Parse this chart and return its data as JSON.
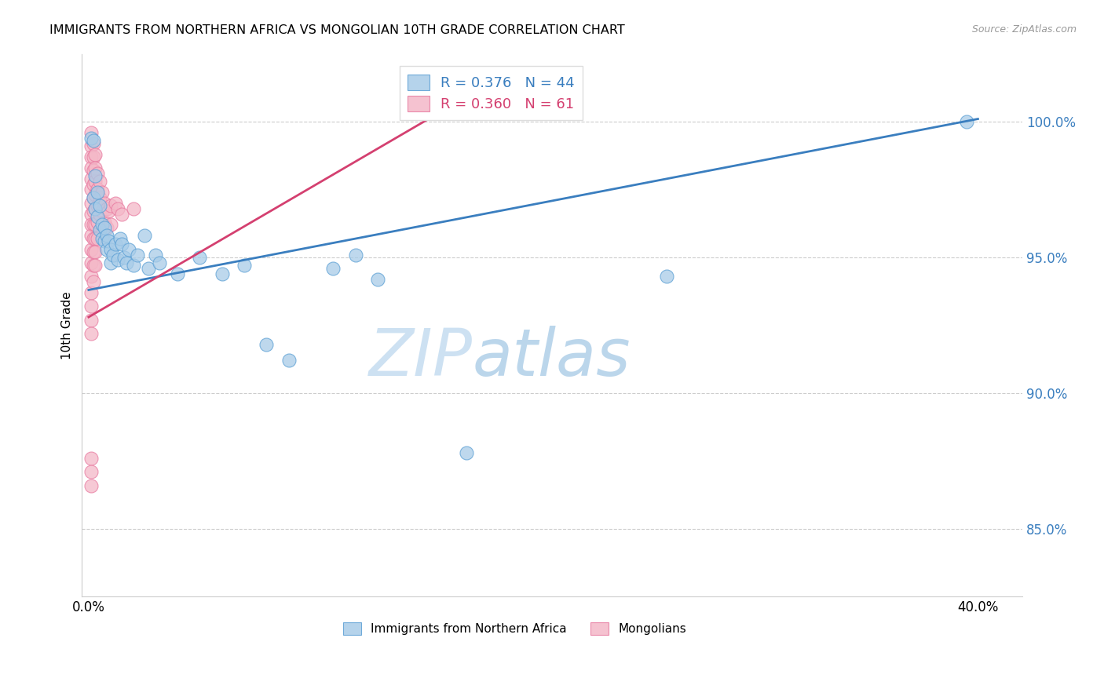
{
  "title": "IMMIGRANTS FROM NORTHERN AFRICA VS MONGOLIAN 10TH GRADE CORRELATION CHART",
  "source": "Source: ZipAtlas.com",
  "ylabel": "10th Grade",
  "y_ticks": [
    0.85,
    0.9,
    0.95,
    1.0
  ],
  "y_tick_labels": [
    "85.0%",
    "90.0%",
    "95.0%",
    "100.0%"
  ],
  "x_ticks": [
    0.0,
    0.05,
    0.1,
    0.15,
    0.2,
    0.25,
    0.3,
    0.35,
    0.4
  ],
  "x_tick_labels": [
    "0.0%",
    "",
    "",
    "",
    "",
    "",
    "",
    "",
    "40.0%"
  ],
  "xlim": [
    -0.003,
    0.42
  ],
  "ylim": [
    0.825,
    1.025
  ],
  "legend_blue_r": "0.376",
  "legend_blue_n": "44",
  "legend_pink_r": "0.360",
  "legend_pink_n": "61",
  "legend_blue_label": "Immigrants from Northern Africa",
  "legend_pink_label": "Mongolians",
  "blue_color": "#a8cce8",
  "pink_color": "#f4b8c8",
  "blue_edge_color": "#5b9fd4",
  "pink_edge_color": "#e87aa0",
  "blue_line_color": "#3a7ebf",
  "pink_line_color": "#d44070",
  "watermark_zip": "ZIP",
  "watermark_atlas": "atlas",
  "blue_points": [
    [
      0.001,
      0.994
    ],
    [
      0.002,
      0.993
    ],
    [
      0.002,
      0.972
    ],
    [
      0.003,
      0.98
    ],
    [
      0.003,
      0.968
    ],
    [
      0.004,
      0.974
    ],
    [
      0.004,
      0.965
    ],
    [
      0.005,
      0.969
    ],
    [
      0.005,
      0.96
    ],
    [
      0.006,
      0.962
    ],
    [
      0.006,
      0.957
    ],
    [
      0.007,
      0.961
    ],
    [
      0.007,
      0.956
    ],
    [
      0.008,
      0.958
    ],
    [
      0.008,
      0.953
    ],
    [
      0.009,
      0.956
    ],
    [
      0.01,
      0.953
    ],
    [
      0.01,
      0.948
    ],
    [
      0.011,
      0.951
    ],
    [
      0.012,
      0.955
    ],
    [
      0.013,
      0.949
    ],
    [
      0.014,
      0.957
    ],
    [
      0.015,
      0.955
    ],
    [
      0.016,
      0.95
    ],
    [
      0.017,
      0.948
    ],
    [
      0.018,
      0.953
    ],
    [
      0.02,
      0.947
    ],
    [
      0.022,
      0.951
    ],
    [
      0.025,
      0.958
    ],
    [
      0.027,
      0.946
    ],
    [
      0.03,
      0.951
    ],
    [
      0.032,
      0.948
    ],
    [
      0.04,
      0.944
    ],
    [
      0.05,
      0.95
    ],
    [
      0.06,
      0.944
    ],
    [
      0.07,
      0.947
    ],
    [
      0.08,
      0.918
    ],
    [
      0.09,
      0.912
    ],
    [
      0.11,
      0.946
    ],
    [
      0.12,
      0.951
    ],
    [
      0.13,
      0.942
    ],
    [
      0.17,
      0.878
    ],
    [
      0.26,
      0.943
    ],
    [
      0.395,
      1.0
    ]
  ],
  "pink_points": [
    [
      0.001,
      0.996
    ],
    [
      0.001,
      0.991
    ],
    [
      0.001,
      0.987
    ],
    [
      0.001,
      0.983
    ],
    [
      0.001,
      0.979
    ],
    [
      0.001,
      0.975
    ],
    [
      0.001,
      0.97
    ],
    [
      0.001,
      0.966
    ],
    [
      0.001,
      0.962
    ],
    [
      0.001,
      0.958
    ],
    [
      0.001,
      0.953
    ],
    [
      0.001,
      0.948
    ],
    [
      0.001,
      0.943
    ],
    [
      0.001,
      0.937
    ],
    [
      0.001,
      0.932
    ],
    [
      0.001,
      0.927
    ],
    [
      0.001,
      0.922
    ],
    [
      0.001,
      0.876
    ],
    [
      0.001,
      0.871
    ],
    [
      0.001,
      0.866
    ],
    [
      0.002,
      0.992
    ],
    [
      0.002,
      0.987
    ],
    [
      0.002,
      0.982
    ],
    [
      0.002,
      0.977
    ],
    [
      0.002,
      0.972
    ],
    [
      0.002,
      0.967
    ],
    [
      0.002,
      0.962
    ],
    [
      0.002,
      0.957
    ],
    [
      0.002,
      0.952
    ],
    [
      0.002,
      0.947
    ],
    [
      0.002,
      0.941
    ],
    [
      0.003,
      0.988
    ],
    [
      0.003,
      0.983
    ],
    [
      0.003,
      0.978
    ],
    [
      0.003,
      0.973
    ],
    [
      0.003,
      0.968
    ],
    [
      0.003,
      0.962
    ],
    [
      0.003,
      0.957
    ],
    [
      0.003,
      0.952
    ],
    [
      0.003,
      0.947
    ],
    [
      0.004,
      0.981
    ],
    [
      0.004,
      0.975
    ],
    [
      0.004,
      0.969
    ],
    [
      0.004,
      0.963
    ],
    [
      0.004,
      0.957
    ],
    [
      0.005,
      0.978
    ],
    [
      0.005,
      0.972
    ],
    [
      0.005,
      0.966
    ],
    [
      0.006,
      0.974
    ],
    [
      0.006,
      0.967
    ],
    [
      0.007,
      0.97
    ],
    [
      0.007,
      0.963
    ],
    [
      0.008,
      0.968
    ],
    [
      0.008,
      0.961
    ],
    [
      0.009,
      0.967
    ],
    [
      0.01,
      0.969
    ],
    [
      0.01,
      0.962
    ],
    [
      0.012,
      0.97
    ],
    [
      0.013,
      0.968
    ],
    [
      0.015,
      0.966
    ],
    [
      0.02,
      0.968
    ]
  ],
  "blue_line_x": [
    0.0,
    0.4
  ],
  "blue_line_y": [
    0.938,
    1.001
  ],
  "pink_line_x": [
    0.0,
    0.155
  ],
  "pink_line_y": [
    0.928,
    1.002
  ]
}
